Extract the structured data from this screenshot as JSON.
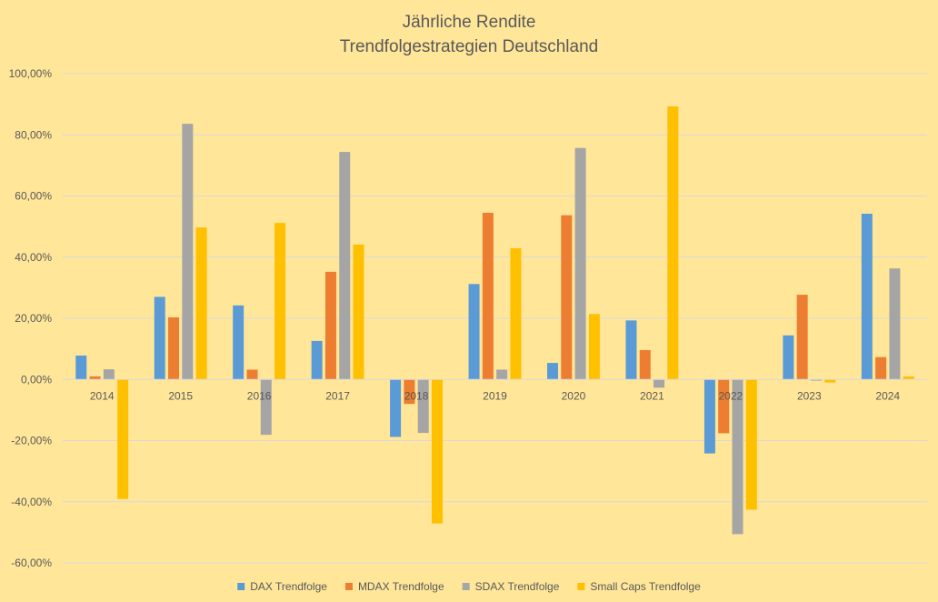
{
  "chart_data": {
    "type": "bar",
    "title": [
      "Jährliche Rendite",
      "Trendfolgestrategien Deutschland"
    ],
    "categories": [
      "2014",
      "2015",
      "2016",
      "2017",
      "2018",
      "2019",
      "2020",
      "2021",
      "2022",
      "2023",
      "2024"
    ],
    "ylim": [
      -60,
      100
    ],
    "yticks": [
      100,
      80,
      60,
      40,
      20,
      0,
      -20,
      -40,
      -60
    ],
    "ytick_labels": [
      "100,00%",
      "80,00%",
      "60,00%",
      "40,00%",
      "20,00%",
      "0,00%",
      "-20,00%",
      "-40,00%",
      "-60,00%"
    ],
    "grid": true,
    "legend_position": "bottom",
    "series": [
      {
        "name": "DAX Trendfolge",
        "color": "#5B9BD5",
        "values": [
          7.8,
          27.0,
          24.2,
          12.6,
          -18.8,
          31.2,
          5.4,
          19.3,
          -24.2,
          14.4,
          54.2
        ]
      },
      {
        "name": "MDAX Trendfolge",
        "color": "#ED7D31",
        "values": [
          1.0,
          20.3,
          3.2,
          35.2,
          -8.0,
          54.5,
          53.7,
          9.6,
          -17.6,
          27.7,
          7.3
        ]
      },
      {
        "name": "SDAX Trendfolge",
        "color": "#A5A5A5",
        "values": [
          3.3,
          83.6,
          -18.1,
          74.4,
          -17.5,
          3.2,
          75.7,
          -2.7,
          -50.6,
          -0.4,
          36.3
        ]
      },
      {
        "name": "Small Caps Trendfolge",
        "color": "#FFC000",
        "values": [
          -39.1,
          49.7,
          51.2,
          44.1,
          -47.1,
          42.9,
          21.4,
          89.3,
          -42.6,
          -1.0,
          1.0
        ]
      }
    ]
  }
}
